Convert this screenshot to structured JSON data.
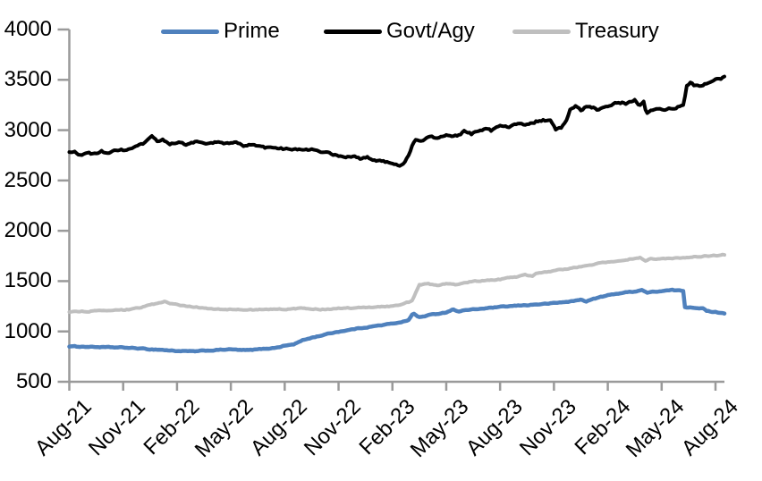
{
  "legend": {
    "items": [
      "Prime",
      "Govt/Agy",
      "Treasury"
    ]
  },
  "chart_data": {
    "type": "line",
    "title": "",
    "xlabel": "",
    "ylabel": "",
    "grid": "off",
    "legend_position": "top",
    "axis_color": "#9a9a9a",
    "label_color": "#000000",
    "y_ticks": [
      4000,
      3500,
      3000,
      2500,
      2000,
      1500,
      1000,
      500
    ],
    "y_range": [
      500,
      4000
    ],
    "x_tick_labels": [
      "Aug-21",
      "Nov-21",
      "Feb-22",
      "May-22",
      "Aug-22",
      "Nov-22",
      "Feb-23",
      "May-23",
      "Aug-23",
      "Nov-23",
      "Feb-24",
      "May-24",
      "Aug-24"
    ],
    "x_tick_months": [
      0,
      3,
      6,
      9,
      12,
      15,
      18,
      21,
      24,
      27,
      30,
      33,
      36
    ],
    "x_range_months": [
      0,
      36.5
    ],
    "series": [
      {
        "name": "Prime",
        "color": "#4F81BD",
        "stroke_width": 4.5,
        "noise": 4,
        "points": [
          [
            0,
            852
          ],
          [
            1,
            848
          ],
          [
            2,
            843
          ],
          [
            3,
            840
          ],
          [
            3.5,
            835
          ],
          [
            4,
            830
          ],
          [
            4.5,
            822
          ],
          [
            5,
            820
          ],
          [
            5.5,
            812
          ],
          [
            6,
            806
          ],
          [
            7,
            802
          ],
          [
            7.5,
            808
          ],
          [
            8,
            812
          ],
          [
            8.6,
            820
          ],
          [
            9,
            822
          ],
          [
            9.5,
            815
          ],
          [
            10,
            814
          ],
          [
            10.5,
            822
          ],
          [
            11,
            830
          ],
          [
            11.5,
            838
          ],
          [
            12,
            858
          ],
          [
            12.5,
            872
          ],
          [
            13,
            912
          ],
          [
            13.5,
            938
          ],
          [
            14,
            958
          ],
          [
            14.5,
            980
          ],
          [
            15,
            998
          ],
          [
            15.5,
            1012
          ],
          [
            16,
            1028
          ],
          [
            16.5,
            1040
          ],
          [
            17,
            1052
          ],
          [
            17.5,
            1065
          ],
          [
            18,
            1078
          ],
          [
            18.6,
            1098
          ],
          [
            18.9,
            1112
          ],
          [
            19.15,
            1183
          ],
          [
            19.45,
            1140
          ],
          [
            19.8,
            1152
          ],
          [
            20,
            1162
          ],
          [
            20.5,
            1175
          ],
          [
            21,
            1190
          ],
          [
            21.35,
            1218
          ],
          [
            21.7,
            1200
          ],
          [
            22,
            1210
          ],
          [
            22.5,
            1218
          ],
          [
            23,
            1226
          ],
          [
            23.5,
            1235
          ],
          [
            24,
            1243
          ],
          [
            24.5,
            1250
          ],
          [
            25,
            1256
          ],
          [
            25.5,
            1262
          ],
          [
            26,
            1268
          ],
          [
            26.5,
            1274
          ],
          [
            27,
            1282
          ],
          [
            27.5,
            1290
          ],
          [
            28,
            1300
          ],
          [
            28.5,
            1315
          ],
          [
            28.8,
            1300
          ],
          [
            29,
            1312
          ],
          [
            29.5,
            1338
          ],
          [
            30,
            1358
          ],
          [
            30.3,
            1370
          ],
          [
            31,
            1388
          ],
          [
            31.5,
            1398
          ],
          [
            31.9,
            1412
          ],
          [
            32.2,
            1385
          ],
          [
            32.6,
            1395
          ],
          [
            33,
            1400
          ],
          [
            33.6,
            1411
          ],
          [
            34,
            1406
          ],
          [
            34.2,
            1403
          ],
          [
            34.3,
            1242
          ],
          [
            34.6,
            1240
          ],
          [
            34.9,
            1236
          ],
          [
            35.2,
            1231
          ],
          [
            35.35,
            1228
          ],
          [
            35.45,
            1204
          ],
          [
            35.7,
            1198
          ],
          [
            36,
            1192
          ],
          [
            36.5,
            1182
          ]
        ]
      },
      {
        "name": "Govt/Agy",
        "color": "#000000",
        "stroke_width": 4,
        "noise": 11,
        "points": [
          [
            0,
            2775
          ],
          [
            0.3,
            2782
          ],
          [
            0.6,
            2748
          ],
          [
            1,
            2778
          ],
          [
            1.4,
            2760
          ],
          [
            1.8,
            2788
          ],
          [
            2.2,
            2775
          ],
          [
            2.6,
            2792
          ],
          [
            3,
            2800
          ],
          [
            3.4,
            2812
          ],
          [
            3.8,
            2836
          ],
          [
            4.2,
            2868
          ],
          [
            4.6,
            2930
          ],
          [
            4.9,
            2892
          ],
          [
            5.2,
            2902
          ],
          [
            5.6,
            2866
          ],
          [
            6,
            2885
          ],
          [
            6.5,
            2856
          ],
          [
            7,
            2888
          ],
          [
            7.6,
            2860
          ],
          [
            8.2,
            2878
          ],
          [
            8.8,
            2868
          ],
          [
            9.3,
            2872
          ],
          [
            9.7,
            2845
          ],
          [
            10.2,
            2862
          ],
          [
            10.7,
            2826
          ],
          [
            11.2,
            2820
          ],
          [
            11.7,
            2828
          ],
          [
            12,
            2810
          ],
          [
            12.5,
            2818
          ],
          [
            13,
            2796
          ],
          [
            13.5,
            2805
          ],
          [
            14,
            2778
          ],
          [
            14.5,
            2768
          ],
          [
            15,
            2748
          ],
          [
            15.4,
            2726
          ],
          [
            15.8,
            2742
          ],
          [
            16.2,
            2715
          ],
          [
            16.6,
            2728
          ],
          [
            17,
            2705
          ],
          [
            17.4,
            2690
          ],
          [
            17.8,
            2685
          ],
          [
            18.1,
            2668
          ],
          [
            18.4,
            2652
          ],
          [
            18.7,
            2686
          ],
          [
            19,
            2790
          ],
          [
            19.25,
            2906
          ],
          [
            19.6,
            2880
          ],
          [
            19.9,
            2925
          ],
          [
            20.2,
            2938
          ],
          [
            20.5,
            2915
          ],
          [
            20.8,
            2945
          ],
          [
            21.2,
            2952
          ],
          [
            21.6,
            2942
          ],
          [
            22,
            2985
          ],
          [
            22.4,
            2962
          ],
          [
            22.8,
            2995
          ],
          [
            23.2,
            3012
          ],
          [
            23.5,
            2995
          ],
          [
            24,
            3046
          ],
          [
            24.5,
            3038
          ],
          [
            25,
            3070
          ],
          [
            25.6,
            3050
          ],
          [
            26,
            3085
          ],
          [
            26.4,
            3096
          ],
          [
            26.8,
            3088
          ],
          [
            27.1,
            3005
          ],
          [
            27.4,
            3018
          ],
          [
            27.7,
            3088
          ],
          [
            27.9,
            3195
          ],
          [
            28.2,
            3238
          ],
          [
            28.5,
            3195
          ],
          [
            28.8,
            3228
          ],
          [
            29,
            3245
          ],
          [
            29.4,
            3210
          ],
          [
            29.8,
            3232
          ],
          [
            30.2,
            3252
          ],
          [
            30.6,
            3282
          ],
          [
            31,
            3265
          ],
          [
            31.5,
            3298
          ],
          [
            31.75,
            3255
          ],
          [
            32,
            3285
          ],
          [
            32.15,
            3160
          ],
          [
            32.5,
            3196
          ],
          [
            33,
            3204
          ],
          [
            33.5,
            3212
          ],
          [
            34,
            3238
          ],
          [
            34.25,
            3250
          ],
          [
            34.35,
            3428
          ],
          [
            34.6,
            3466
          ],
          [
            34.8,
            3440
          ],
          [
            35,
            3452
          ],
          [
            35.3,
            3446
          ],
          [
            35.6,
            3468
          ],
          [
            36,
            3502
          ],
          [
            36.3,
            3512
          ],
          [
            36.5,
            3526
          ]
        ]
      },
      {
        "name": "Treasury",
        "color": "#BFBFBF",
        "stroke_width": 4,
        "noise": 5,
        "points": [
          [
            0,
            1194
          ],
          [
            0.5,
            1198
          ],
          [
            1,
            1200
          ],
          [
            1.5,
            1202
          ],
          [
            2,
            1206
          ],
          [
            2.5,
            1208
          ],
          [
            3,
            1212
          ],
          [
            3.5,
            1222
          ],
          [
            4,
            1240
          ],
          [
            4.7,
            1270
          ],
          [
            5.3,
            1295
          ],
          [
            5.9,
            1268
          ],
          [
            6.5,
            1254
          ],
          [
            7,
            1240
          ],
          [
            7.5,
            1232
          ],
          [
            8,
            1226
          ],
          [
            8.5,
            1221
          ],
          [
            9,
            1218
          ],
          [
            9.5,
            1215
          ],
          [
            10,
            1214
          ],
          [
            10.5,
            1217
          ],
          [
            11,
            1220
          ],
          [
            11.5,
            1222
          ],
          [
            12,
            1221
          ],
          [
            12.5,
            1225
          ],
          [
            13,
            1228
          ],
          [
            13.5,
            1224
          ],
          [
            14,
            1220
          ],
          [
            14.5,
            1224
          ],
          [
            15,
            1228
          ],
          [
            15.5,
            1232
          ],
          [
            16,
            1236
          ],
          [
            16.5,
            1240
          ],
          [
            17,
            1243
          ],
          [
            17.5,
            1248
          ],
          [
            18,
            1253
          ],
          [
            18.5,
            1272
          ],
          [
            18.9,
            1290
          ],
          [
            19.1,
            1306
          ],
          [
            19.5,
            1460
          ],
          [
            19.8,
            1468
          ],
          [
            20,
            1472
          ],
          [
            20.5,
            1456
          ],
          [
            21,
            1478
          ],
          [
            21.5,
            1468
          ],
          [
            22,
            1488
          ],
          [
            22.5,
            1496
          ],
          [
            23,
            1504
          ],
          [
            23.5,
            1510
          ],
          [
            24,
            1516
          ],
          [
            24.5,
            1532
          ],
          [
            25,
            1546
          ],
          [
            25.4,
            1560
          ],
          [
            25.8,
            1550
          ],
          [
            26,
            1572
          ],
          [
            26.5,
            1588
          ],
          [
            27,
            1604
          ],
          [
            27.5,
            1618
          ],
          [
            28,
            1632
          ],
          [
            28.5,
            1645
          ],
          [
            29,
            1658
          ],
          [
            29.5,
            1675
          ],
          [
            30,
            1690
          ],
          [
            30.4,
            1700
          ],
          [
            30.8,
            1708
          ],
          [
            31.3,
            1720
          ],
          [
            31.8,
            1732
          ],
          [
            32.1,
            1700
          ],
          [
            32.4,
            1722
          ],
          [
            32.8,
            1716
          ],
          [
            33.2,
            1722
          ],
          [
            33.6,
            1727
          ],
          [
            34,
            1732
          ],
          [
            34.5,
            1737
          ],
          [
            35,
            1742
          ],
          [
            35.5,
            1748
          ],
          [
            36,
            1756
          ],
          [
            36.5,
            1762
          ]
        ]
      }
    ]
  }
}
